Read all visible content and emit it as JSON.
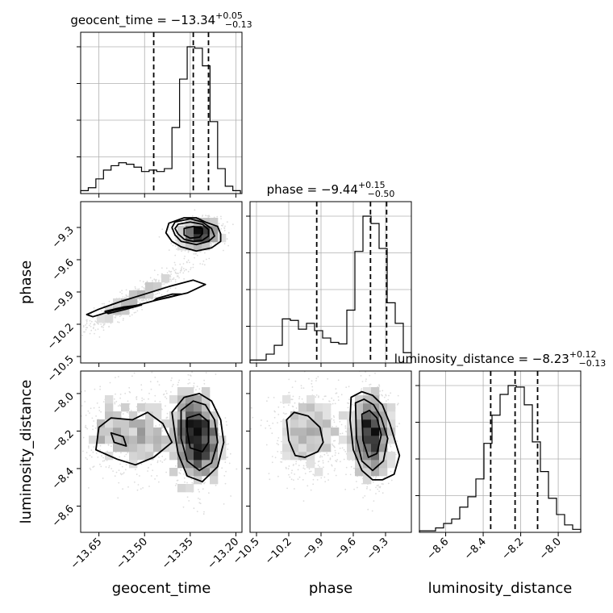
{
  "chart_data": {
    "type": "corner",
    "parameters": [
      {
        "key": "geocent_time",
        "label": "geocent_time",
        "title_prefix": "geocent_time = ",
        "median": "−13.34",
        "plus": "+0.05",
        "minus": "−0.13",
        "range": [
          -13.71,
          -13.18
        ],
        "ticks": [
          -13.65,
          -13.5,
          -13.35,
          -13.2
        ],
        "tick_labels": [
          "−13.65",
          "−13.50",
          "−13.35",
          "−13.20"
        ],
        "quantiles": [
          -13.47,
          -13.34,
          -13.29
        ],
        "hist": {
          "edges": [
            -13.71,
            -13.685,
            -13.66,
            -13.635,
            -13.61,
            -13.585,
            -13.56,
            -13.535,
            -13.51,
            -13.485,
            -13.46,
            -13.435,
            -13.41,
            -13.385,
            -13.36,
            -13.335,
            -13.31,
            -13.285,
            -13.26,
            -13.235,
            -13.21,
            -13.185
          ],
          "counts": [
            0.02,
            0.04,
            0.1,
            0.16,
            0.19,
            0.21,
            0.2,
            0.18,
            0.15,
            0.16,
            0.15,
            0.17,
            0.45,
            0.78,
            1.0,
            0.99,
            0.87,
            0.49,
            0.17,
            0.05,
            0.02
          ]
        }
      },
      {
        "key": "phase",
        "label": "phase",
        "title_prefix": "phase = ",
        "median": "−9.44",
        "plus": "+0.15",
        "minus": "−0.50",
        "range": [
          -10.56,
          -9.06
        ],
        "ticks": [
          -10.5,
          -10.2,
          -9.9,
          -9.6,
          -9.3
        ],
        "tick_labels": [
          "−10.5",
          "−10.2",
          "−9.9",
          "−9.6",
          "−9.3"
        ],
        "quantiles": [
          -9.94,
          -9.44,
          -9.29
        ],
        "hist": {
          "edges": [
            -10.56,
            -10.485,
            -10.41,
            -10.335,
            -10.26,
            -10.185,
            -10.11,
            -10.035,
            -9.96,
            -9.885,
            -9.81,
            -9.735,
            -9.66,
            -9.585,
            -9.51,
            -9.435,
            -9.36,
            -9.285,
            -9.21,
            -9.135,
            -9.06
          ],
          "counts": [
            0.02,
            0.02,
            0.06,
            0.12,
            0.3,
            0.29,
            0.23,
            0.27,
            0.22,
            0.17,
            0.14,
            0.13,
            0.36,
            0.76,
            1.0,
            0.95,
            0.78,
            0.41,
            0.27,
            0.07
          ]
        }
      },
      {
        "key": "luminosity_distance",
        "label": "luminosity_distance",
        "title_prefix": "luminosity_distance = ",
        "median": "−8.23",
        "plus": "+0.12",
        "minus": "−0.13",
        "range": [
          -8.74,
          -7.88
        ],
        "ticks": [
          -8.6,
          -8.4,
          -8.2,
          -8.0
        ],
        "tick_labels": [
          "−8.6",
          "−8.4",
          "−8.2",
          "−8.0"
        ],
        "quantiles": [
          -8.36,
          -8.23,
          -8.11
        ],
        "hist": {
          "edges": [
            -8.74,
            -8.697,
            -8.654,
            -8.611,
            -8.568,
            -8.525,
            -8.482,
            -8.439,
            -8.396,
            -8.353,
            -8.31,
            -8.267,
            -8.224,
            -8.181,
            -8.138,
            -8.095,
            -8.052,
            -8.009,
            -7.966,
            -7.923,
            -7.88
          ],
          "counts": [
            0.01,
            0.01,
            0.03,
            0.06,
            0.09,
            0.17,
            0.24,
            0.36,
            0.6,
            0.79,
            0.93,
            0.99,
            0.98,
            0.86,
            0.61,
            0.41,
            0.23,
            0.12,
            0.05,
            0.02
          ]
        }
      }
    ],
    "pairs": [
      {
        "x": "geocent_time",
        "y": "phase",
        "clusters": [
          {
            "mx": -13.32,
            "my": -9.36,
            "sx": 0.035,
            "sy": 0.07,
            "rho": 0.15,
            "n": 1100
          },
          {
            "mx": -13.54,
            "my": -9.98,
            "sx": 0.085,
            "sy": 0.15,
            "rho": 0.93,
            "n": 650
          }
        ],
        "contours": [
          [
            [
              -13.4,
              -9.25
            ],
            [
              -13.35,
              -9.22
            ],
            [
              -13.31,
              -9.25
            ],
            [
              -13.28,
              -9.31
            ],
            [
              -13.27,
              -9.38
            ],
            [
              -13.29,
              -9.43
            ],
            [
              -13.33,
              -9.46
            ],
            [
              -13.38,
              -9.43
            ],
            [
              -13.4,
              -9.37
            ],
            [
              -13.41,
              -9.3
            ]
          ],
          [
            [
              -13.39,
              -9.27
            ],
            [
              -13.35,
              -9.25
            ],
            [
              -13.31,
              -9.27
            ],
            [
              -13.29,
              -9.32
            ],
            [
              -13.29,
              -9.38
            ],
            [
              -13.31,
              -9.42
            ],
            [
              -13.34,
              -9.43
            ],
            [
              -13.37,
              -9.41
            ],
            [
              -13.39,
              -9.36
            ],
            [
              -13.4,
              -9.31
            ]
          ],
          [
            [
              -13.37,
              -9.31
            ],
            [
              -13.34,
              -9.29
            ],
            [
              -13.31,
              -9.31
            ],
            [
              -13.31,
              -9.36
            ],
            [
              -13.32,
              -9.39
            ],
            [
              -13.35,
              -9.4
            ],
            [
              -13.37,
              -9.37
            ]
          ],
          [
            [
              -13.42,
              -9.26
            ],
            [
              -13.37,
              -9.21
            ],
            [
              -13.33,
              -9.21
            ],
            [
              -13.3,
              -9.25
            ],
            [
              -13.26,
              -9.29
            ],
            [
              -13.25,
              -9.36
            ],
            [
              -13.25,
              -9.43
            ],
            [
              -13.28,
              -9.49
            ],
            [
              -13.33,
              -9.52
            ],
            [
              -13.38,
              -9.48
            ],
            [
              -13.41,
              -9.43
            ],
            [
              -13.43,
              -9.35
            ]
          ],
          [
            [
              -13.67,
              -10.13
            ],
            [
              -13.6,
              -10.07
            ],
            [
              -13.52,
              -10.02
            ],
            [
              -13.44,
              -9.96
            ],
            [
              -13.36,
              -9.91
            ],
            [
              -13.3,
              -9.83
            ],
            [
              -13.34,
              -9.79
            ],
            [
              -13.42,
              -9.85
            ],
            [
              -13.5,
              -9.92
            ],
            [
              -13.58,
              -9.99
            ],
            [
              -13.65,
              -10.06
            ],
            [
              -13.69,
              -10.11
            ]
          ],
          [
            [
              -13.63,
              -10.08
            ],
            [
              -13.57,
              -10.04
            ],
            [
              -13.51,
              -10.02
            ],
            [
              -13.56,
              -10.06
            ],
            [
              -13.62,
              -10.1
            ]
          ],
          [
            [
              -13.47,
              -9.98
            ],
            [
              -13.42,
              -9.95
            ],
            [
              -13.38,
              -9.92
            ],
            [
              -13.41,
              -9.92
            ],
            [
              -13.46,
              -9.96
            ]
          ]
        ]
      },
      {
        "x": "geocent_time",
        "y": "luminosity_distance",
        "clusters": [
          {
            "mx": -13.33,
            "my": -8.23,
            "sx": 0.04,
            "sy": 0.13,
            "rho": -0.1,
            "n": 1100
          },
          {
            "mx": -13.55,
            "my": -8.22,
            "sx": 0.09,
            "sy": 0.12,
            "rho": 0.0,
            "n": 650
          }
        ],
        "contours": [
          [
            [
              -13.66,
              -8.3
            ],
            [
              -13.65,
              -8.18
            ],
            [
              -13.61,
              -8.13
            ],
            [
              -13.54,
              -8.14
            ],
            [
              -13.49,
              -8.1
            ],
            [
              -13.44,
              -8.16
            ],
            [
              -13.41,
              -8.26
            ],
            [
              -13.47,
              -8.34
            ],
            [
              -13.53,
              -8.38
            ],
            [
              -13.59,
              -8.35
            ]
          ],
          [
            [
              -13.61,
              -8.21
            ],
            [
              -13.6,
              -8.26
            ],
            [
              -13.56,
              -8.28
            ],
            [
              -13.57,
              -8.23
            ]
          ],
          [
            [
              -13.41,
              -8.1
            ],
            [
              -13.37,
              -8.02
            ],
            [
              -13.32,
              -8.0
            ],
            [
              -13.28,
              -8.04
            ],
            [
              -13.25,
              -8.14
            ],
            [
              -13.24,
              -8.26
            ],
            [
              -13.26,
              -8.39
            ],
            [
              -13.31,
              -8.47
            ],
            [
              -13.36,
              -8.44
            ],
            [
              -13.39,
              -8.32
            ],
            [
              -13.4,
              -8.22
            ]
          ],
          [
            [
              -13.38,
              -8.09
            ],
            [
              -13.34,
              -8.04
            ],
            [
              -13.3,
              -8.06
            ],
            [
              -13.27,
              -8.14
            ],
            [
              -13.26,
              -8.26
            ],
            [
              -13.28,
              -8.37
            ],
            [
              -13.32,
              -8.41
            ],
            [
              -13.36,
              -8.36
            ],
            [
              -13.38,
              -8.24
            ]
          ],
          [
            [
              -13.36,
              -8.13
            ],
            [
              -13.32,
              -8.11
            ],
            [
              -13.29,
              -8.15
            ],
            [
              -13.29,
              -8.26
            ],
            [
              -13.31,
              -8.31
            ],
            [
              -13.35,
              -8.29
            ],
            [
              -13.36,
              -8.2
            ]
          ]
        ]
      },
      {
        "x": "phase",
        "y": "luminosity_distance",
        "clusters": [
          {
            "mx": -9.43,
            "my": -8.22,
            "sx": 0.1,
            "sy": 0.12,
            "rho": 0.0,
            "n": 1100
          },
          {
            "mx": -10.0,
            "my": -8.22,
            "sx": 0.18,
            "sy": 0.12,
            "rho": 0.0,
            "n": 650
          }
        ],
        "contours": [
          [
            [
              -10.22,
              -8.14
            ],
            [
              -10.15,
              -8.1
            ],
            [
              -10.02,
              -8.12
            ],
            [
              -9.91,
              -8.18
            ],
            [
              -9.88,
              -8.26
            ],
            [
              -9.93,
              -8.31
            ],
            [
              -10.05,
              -8.34
            ],
            [
              -10.14,
              -8.33
            ],
            [
              -10.2,
              -8.25
            ]
          ],
          [
            [
              -9.62,
              -8.02
            ],
            [
              -9.52,
              -7.99
            ],
            [
              -9.42,
              -8.01
            ],
            [
              -9.33,
              -8.06
            ],
            [
              -9.26,
              -8.16
            ],
            [
              -9.17,
              -8.33
            ],
            [
              -9.22,
              -8.43
            ],
            [
              -9.33,
              -8.46
            ],
            [
              -9.42,
              -8.46
            ],
            [
              -9.52,
              -8.41
            ],
            [
              -9.6,
              -8.3
            ],
            [
              -9.63,
              -8.14
            ]
          ],
          [
            [
              -9.58,
              -8.05
            ],
            [
              -9.5,
              -8.03
            ],
            [
              -9.41,
              -8.06
            ],
            [
              -9.34,
              -8.13
            ],
            [
              -9.28,
              -8.24
            ],
            [
              -9.32,
              -8.36
            ],
            [
              -9.42,
              -8.41
            ],
            [
              -9.52,
              -8.36
            ],
            [
              -9.57,
              -8.24
            ]
          ],
          [
            [
              -9.52,
              -8.11
            ],
            [
              -9.45,
              -8.09
            ],
            [
              -9.38,
              -8.13
            ],
            [
              -9.34,
              -8.22
            ],
            [
              -9.38,
              -8.32
            ],
            [
              -9.46,
              -8.34
            ],
            [
              -9.51,
              -8.25
            ]
          ]
        ]
      }
    ],
    "axis_labels": {
      "bottom": [
        "geocent_time",
        "phase",
        "luminosity_distance"
      ],
      "left": [
        "phase",
        "luminosity_distance"
      ]
    },
    "grid": true
  },
  "colors": {
    "points": "#9a9a9a",
    "contour": "#000000",
    "quantile": "#000000",
    "grid": "#b0b0b0"
  }
}
